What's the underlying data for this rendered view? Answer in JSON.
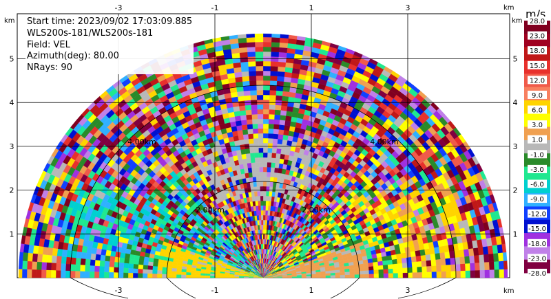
{
  "info": {
    "start_time": "Start time: 2023/09/02 17:03:09.885",
    "instrument": "WLS200s-181/WLS200s-181",
    "field": "Field: VEL",
    "azimuth": "Azimuth(deg): 80.00",
    "nrays": "NRays: 90"
  },
  "axes": {
    "x_unit": "km",
    "y_unit": "km",
    "x_ticks": [
      "-3",
      "-1",
      "1",
      "3"
    ],
    "y_ticks": [
      "1",
      "2",
      "3",
      "4",
      "5"
    ],
    "range_rings": [
      "2.00km",
      "4.00km"
    ]
  },
  "colorbar": {
    "unit": "m/s",
    "labels": [
      "28.0",
      "23.0",
      "18.0",
      "15.0",
      "12.0",
      "9.0",
      "6.0",
      "3.0",
      "1.0",
      "-1.0",
      "-3.0",
      "-6.0",
      "-9.0",
      "-12.0",
      "-15.0",
      "-18.0",
      "-23.0",
      "-28.0"
    ],
    "colors": [
      "#800020",
      "#a00020",
      "#c01818",
      "#e8302c",
      "#f05a4a",
      "#f88060",
      "#ffd400",
      "#ffff00",
      "#f0a050",
      "#b8b8b8",
      "#2a8a2a",
      "#20e890",
      "#00d0d0",
      "#30b0ff",
      "#1040ff",
      "#0010d0",
      "#a030e0",
      "#c080e8",
      "#800040"
    ]
  }
}
